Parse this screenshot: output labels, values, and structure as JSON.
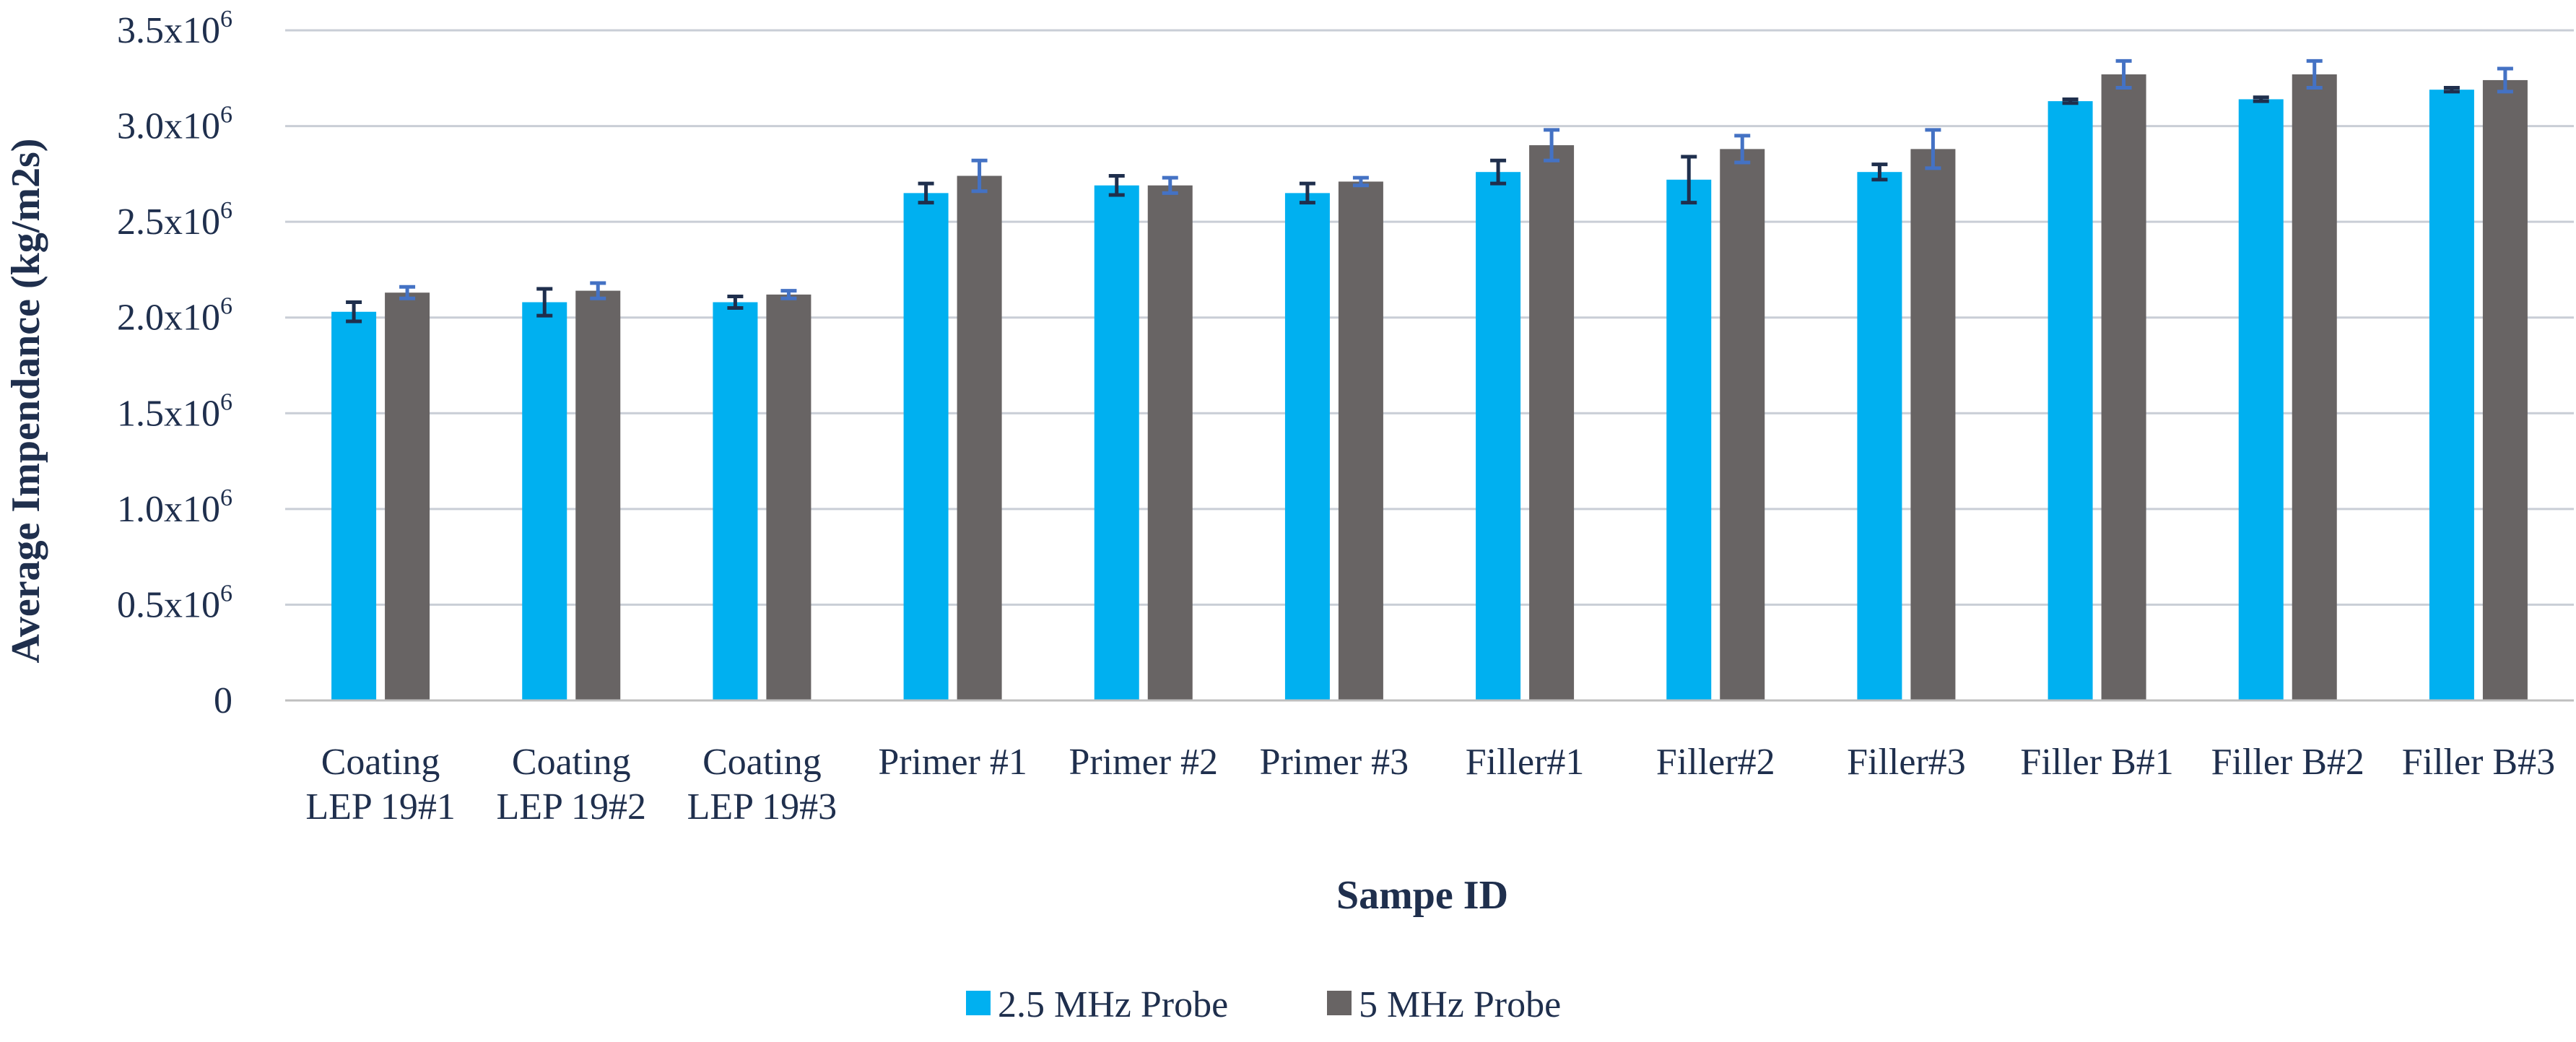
{
  "chart_data": {
    "type": "bar",
    "title": "",
    "xlabel": "Sampe ID",
    "ylabel": "Average Impendance (kg/m2s)",
    "ylim": [
      0,
      3500000
    ],
    "yticks": [
      {
        "value": 0,
        "mantissa": "0",
        "exp": ""
      },
      {
        "value": 500000,
        "mantissa": "0.5x10",
        "exp": "6"
      },
      {
        "value": 1000000,
        "mantissa": "1.0x10",
        "exp": "6"
      },
      {
        "value": 1500000,
        "mantissa": "1.5x10",
        "exp": "6"
      },
      {
        "value": 2000000,
        "mantissa": "2.0x10",
        "exp": "6"
      },
      {
        "value": 2500000,
        "mantissa": "2.5x10",
        "exp": "6"
      },
      {
        "value": 3000000,
        "mantissa": "3.0x10",
        "exp": "6"
      },
      {
        "value": 3500000,
        "mantissa": "3.5x10",
        "exp": "6"
      }
    ],
    "grid": true,
    "legend_position": "bottom",
    "categories": [
      [
        "Coating",
        "LEP 19#1"
      ],
      [
        "Coating",
        "LEP 19#2"
      ],
      [
        "Coating",
        "LEP 19#3"
      ],
      [
        "Primer #1"
      ],
      [
        "Primer #2"
      ],
      [
        "Primer #3"
      ],
      [
        "Filler#1"
      ],
      [
        "Filler#2"
      ],
      [
        "Filler#3"
      ],
      [
        "Filler B#1"
      ],
      [
        "Filler B#2"
      ],
      [
        "Filler B#3"
      ]
    ],
    "series": [
      {
        "name": "2.5 MHz Probe",
        "color": "#00b0f0",
        "error_color": "#1f2f4d",
        "values": [
          2030000,
          2080000,
          2080000,
          2650000,
          2690000,
          2650000,
          2760000,
          2720000,
          2760000,
          3130000,
          3140000,
          3190000
        ],
        "errors": [
          50000,
          70000,
          30000,
          50000,
          50000,
          50000,
          60000,
          120000,
          40000,
          10000,
          10000,
          10000
        ]
      },
      {
        "name": "5 MHz Probe",
        "color": "#686464",
        "error_color": "#4472c4",
        "values": [
          2130000,
          2140000,
          2120000,
          2740000,
          2690000,
          2710000,
          2900000,
          2880000,
          2880000,
          3270000,
          3270000,
          3240000
        ],
        "errors": [
          30000,
          40000,
          20000,
          80000,
          40000,
          20000,
          80000,
          70000,
          100000,
          70000,
          70000,
          60000
        ]
      }
    ]
  }
}
